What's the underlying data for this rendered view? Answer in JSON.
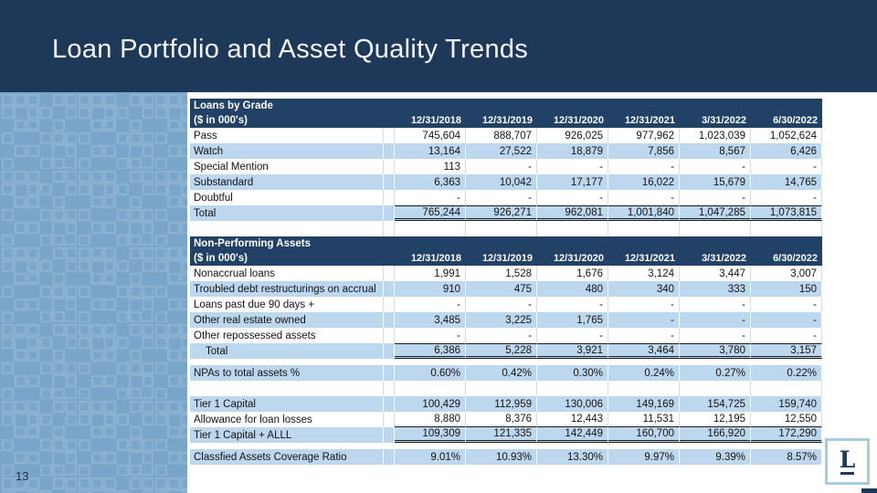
{
  "slide": {
    "title": "Loan Portfolio and Asset Quality Trends",
    "page_number": "13",
    "logo_letter": "L"
  },
  "colors": {
    "top_band": "#1d3858",
    "table_header": "#214167",
    "row_stripe": "#bdd7ee",
    "left_panel": "#79a5c9",
    "panel_pattern": "#8cb2d2",
    "logo_border": "#a9cadf"
  },
  "sheet": {
    "columns": [
      "12/31/2018",
      "12/31/2019",
      "12/31/2020",
      "12/31/2021",
      "3/31/2022",
      "6/30/2022"
    ],
    "sections": [
      {
        "kind": "header",
        "title": "Loans by Grade",
        "subtitle": "($ in 000's)"
      },
      {
        "kind": "row",
        "label": "Pass",
        "shaded": false,
        "values": [
          "745,604",
          "888,707",
          "926,025",
          "977,962",
          "1,023,039",
          "1,052,624"
        ]
      },
      {
        "kind": "row",
        "label": "Watch",
        "shaded": true,
        "values": [
          "13,164",
          "27,522",
          "18,879",
          "7,856",
          "8,567",
          "6,426"
        ]
      },
      {
        "kind": "row",
        "label": "Special Mention",
        "shaded": false,
        "values": [
          "113",
          "-",
          "-",
          "-",
          "-",
          "-"
        ]
      },
      {
        "kind": "row",
        "label": "Substandard",
        "shaded": true,
        "values": [
          "6,363",
          "10,042",
          "17,177",
          "16,022",
          "15,679",
          "14,765"
        ]
      },
      {
        "kind": "row",
        "label": "Doubtful",
        "shaded": false,
        "values": [
          "-",
          "-",
          "-",
          "-",
          "-",
          "-"
        ]
      },
      {
        "kind": "row",
        "label": "Total",
        "shaded": true,
        "rule": "total",
        "values": [
          "765,244",
          "926,271",
          "962,081",
          "1,001,840",
          "1,047,285",
          "1,073,815"
        ]
      },
      {
        "kind": "blank"
      },
      {
        "kind": "header",
        "title": "Non-Performing Assets",
        "subtitle": "($ in 000's)"
      },
      {
        "kind": "row",
        "label": "Nonaccrual loans",
        "shaded": false,
        "values": [
          "1,991",
          "1,528",
          "1,676",
          "3,124",
          "3,447",
          "3,007"
        ]
      },
      {
        "kind": "row",
        "label": "Troubled debt restructurings on accrual",
        "shaded": true,
        "values": [
          "910",
          "475",
          "480",
          "340",
          "333",
          "150"
        ]
      },
      {
        "kind": "row",
        "label": "Loans past due 90 days +",
        "shaded": false,
        "values": [
          "-",
          "-",
          "-",
          "-",
          "-",
          "-"
        ]
      },
      {
        "kind": "row",
        "label": "Other real estate owned",
        "shaded": true,
        "values": [
          "3,485",
          "3,225",
          "1,765",
          "-",
          "-",
          "-"
        ]
      },
      {
        "kind": "row",
        "label": "Other repossessed assets",
        "shaded": false,
        "values": [
          "-",
          "-",
          "-",
          "-",
          "-",
          "-"
        ]
      },
      {
        "kind": "row",
        "label": "Total",
        "indent": true,
        "shaded": true,
        "rule": "total",
        "values": [
          "6,386",
          "5,228",
          "3,921",
          "3,464",
          "3,780",
          "3,157"
        ]
      },
      {
        "kind": "gap"
      },
      {
        "kind": "row",
        "label": "NPAs to total assets %",
        "shaded": true,
        "values": [
          "0.60%",
          "0.42%",
          "0.30%",
          "0.24%",
          "0.27%",
          "0.22%"
        ]
      },
      {
        "kind": "blank"
      },
      {
        "kind": "row",
        "label": "Tier 1 Capital",
        "shaded": true,
        "values": [
          "100,429",
          "112,959",
          "130,006",
          "149,169",
          "154,725",
          "159,740"
        ]
      },
      {
        "kind": "row",
        "label": "Allowance for loan losses",
        "shaded": false,
        "rule": "below",
        "values": [
          "8,880",
          "8,376",
          "12,443",
          "11,531",
          "12,195",
          "12,550"
        ]
      },
      {
        "kind": "row",
        "label": "Tier 1 Capital + ALLL",
        "shaded": true,
        "rule": "double",
        "values": [
          "109,309",
          "121,335",
          "142,449",
          "160,700",
          "166,920",
          "172,290"
        ]
      },
      {
        "kind": "gap"
      },
      {
        "kind": "row",
        "label": "Classfied Assets Coverage Ratio",
        "shaded": true,
        "values": [
          "9.01%",
          "10.93%",
          "13.30%",
          "9.97%",
          "9.39%",
          "8.57%"
        ]
      }
    ]
  }
}
